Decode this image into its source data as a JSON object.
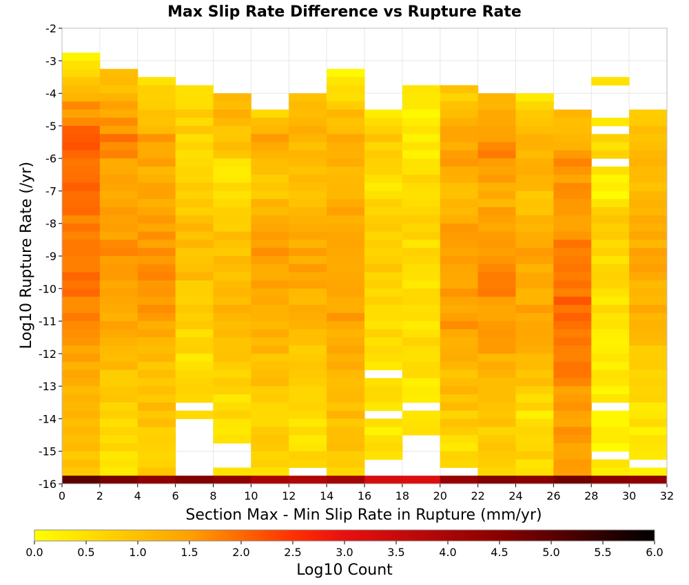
{
  "chart_data": {
    "type": "heatmap",
    "title": "Max Slip Rate Difference vs Rupture Rate",
    "xlabel": "Section Max - Min Slip Rate in Rupture (mm/yr)",
    "ylabel": "Log10 Rupture Rate (/yr)",
    "xlim": [
      0,
      32
    ],
    "ylim": [
      -16,
      -2
    ],
    "x_ticks": [
      "0",
      "2",
      "4",
      "6",
      "8",
      "10",
      "12",
      "14",
      "16",
      "18",
      "20",
      "22",
      "24",
      "26",
      "28",
      "30",
      "32"
    ],
    "y_ticks": [
      "-2",
      "-3",
      "-4",
      "-5",
      "-6",
      "-7",
      "-8",
      "-9",
      "-10",
      "-11",
      "-12",
      "-13",
      "-14",
      "-15",
      "-16"
    ],
    "x_bin_width": 2,
    "y_bin_height": 0.25,
    "grid": true,
    "colorbar": {
      "label": "Log10 Count",
      "range": [
        0,
        6
      ],
      "ticks": [
        "0.0",
        "0.5",
        "1.0",
        "1.5",
        "2.0",
        "2.5",
        "3.0",
        "3.5",
        "4.0",
        "4.5",
        "5.0",
        "5.5",
        "6.0"
      ],
      "stops": [
        {
          "value": 0.0,
          "color": "#ffff00"
        },
        {
          "value": 1.5,
          "color": "#ffa000"
        },
        {
          "value": 2.5,
          "color": "#ff3000"
        },
        {
          "value": 3.0,
          "color": "#e81010"
        },
        {
          "value": 4.5,
          "color": "#8a0000"
        },
        {
          "value": 6.0,
          "color": "#000000"
        }
      ]
    },
    "columns": [
      {
        "x0": 0,
        "top": -2.75,
        "bottom": -16,
        "profile": [
          [
            -2.75,
            0.3
          ],
          [
            -4,
            1.3
          ],
          [
            -5.5,
            2.1
          ],
          [
            -6.5,
            1.9
          ],
          [
            -8,
            1.8
          ],
          [
            -9,
            1.9
          ],
          [
            -11,
            1.7
          ],
          [
            -12.5,
            1.3
          ],
          [
            -14,
            1.1
          ],
          [
            -16,
            0.9
          ]
        ],
        "gaps": []
      },
      {
        "x0": 2,
        "top": -3.25,
        "bottom": -16,
        "profile": [
          [
            -3.25,
            0.8
          ],
          [
            -4,
            1.2
          ],
          [
            -5.5,
            1.8
          ],
          [
            -6.5,
            1.4
          ],
          [
            -9,
            1.6
          ],
          [
            -11,
            1.3
          ],
          [
            -12.5,
            1.0
          ],
          [
            -14,
            0.7
          ],
          [
            -16,
            0.5
          ]
        ],
        "gaps": []
      },
      {
        "x0": 4,
        "top": -3.5,
        "bottom": -16,
        "profile": [
          [
            -3.5,
            0.6
          ],
          [
            -4.5,
            0.9
          ],
          [
            -5.5,
            1.5
          ],
          [
            -6.5,
            1.2
          ],
          [
            -9,
            1.6
          ],
          [
            -11,
            1.5
          ],
          [
            -12,
            1.1
          ],
          [
            -14,
            0.9
          ],
          [
            -16,
            0.7
          ]
        ],
        "gaps": []
      },
      {
        "x0": 6,
        "top": -3.75,
        "bottom": -16,
        "profile": [
          [
            -3.75,
            0.4
          ],
          [
            -5,
            0.8
          ],
          [
            -6.5,
            0.5
          ],
          [
            -8,
            1.0
          ],
          [
            -9,
            1.1
          ],
          [
            -11,
            0.7
          ],
          [
            -12.5,
            0.4
          ],
          [
            -13.5,
            0.6
          ],
          [
            -16,
            0.5
          ]
        ],
        "gaps": [
          [
            -13.75,
            -13.5
          ],
          [
            -14.25,
            -14.0
          ],
          [
            -15.75,
            -14.25
          ]
        ]
      },
      {
        "x0": 8,
        "top": -4.0,
        "bottom": -16,
        "profile": [
          [
            -4,
            1.2
          ],
          [
            -5.5,
            1.0
          ],
          [
            -6.5,
            0.4
          ],
          [
            -8,
            0.8
          ],
          [
            -10,
            1.2
          ],
          [
            -12,
            0.9
          ],
          [
            -13.5,
            0.5
          ],
          [
            -15,
            0.6
          ],
          [
            -16,
            0.5
          ]
        ],
        "gaps": [
          [
            -15.5,
            -14.75
          ],
          [
            -16.0,
            -15.75
          ]
        ]
      },
      {
        "x0": 10,
        "top": -4.5,
        "bottom": -16,
        "profile": [
          [
            -4.5,
            0.5
          ],
          [
            -5.5,
            1.5
          ],
          [
            -7,
            0.8
          ],
          [
            -8,
            1.4
          ],
          [
            -10,
            1.5
          ],
          [
            -12,
            1.1
          ],
          [
            -14,
            0.7
          ],
          [
            -16,
            0.6
          ]
        ],
        "gaps": []
      },
      {
        "x0": 12,
        "top": -4.0,
        "bottom": -16,
        "profile": [
          [
            -4,
            0.9
          ],
          [
            -5,
            1.1
          ],
          [
            -7,
            1.0
          ],
          [
            -9,
            1.4
          ],
          [
            -11,
            1.2
          ],
          [
            -12.5,
            0.8
          ],
          [
            -14,
            0.4
          ],
          [
            -15,
            0.6
          ],
          [
            -16,
            0.6
          ]
        ],
        "gaps": [
          [
            -15.75,
            -15.5
          ]
        ]
      },
      {
        "x0": 14,
        "top": -3.25,
        "bottom": -16,
        "profile": [
          [
            -3.25,
            0.2
          ],
          [
            -4,
            0.6
          ],
          [
            -5,
            1.2
          ],
          [
            -7,
            1.3
          ],
          [
            -9,
            1.5
          ],
          [
            -11,
            1.4
          ],
          [
            -13,
            1.0
          ],
          [
            -14.5,
            1.0
          ],
          [
            -16,
            0.6
          ]
        ],
        "gaps": []
      },
      {
        "x0": 16,
        "top": -4.5,
        "bottom": -16,
        "profile": [
          [
            -4.5,
            0.3
          ],
          [
            -5.5,
            0.9
          ],
          [
            -7,
            0.3
          ],
          [
            -8,
            0.9
          ],
          [
            -10,
            0.7
          ],
          [
            -12,
            0.5
          ],
          [
            -13,
            0.5
          ],
          [
            -14,
            0.3
          ],
          [
            -15,
            0.5
          ],
          [
            -16,
            0.6
          ]
        ],
        "gaps": [
          [
            -12.75,
            -12.5
          ],
          [
            -14.0,
            -13.75
          ],
          [
            -16.0,
            -15.25
          ]
        ]
      },
      {
        "x0": 18,
        "top": -3.75,
        "bottom": -16,
        "profile": [
          [
            -3.75,
            0.4
          ],
          [
            -5.5,
            0.2
          ],
          [
            -6.5,
            0.7
          ],
          [
            -8,
            0.6
          ],
          [
            -10,
            0.5
          ],
          [
            -12,
            0.5
          ],
          [
            -13,
            0.4
          ],
          [
            -14,
            0.4
          ],
          [
            -14.5,
            0.4
          ]
        ],
        "gaps": [
          [
            -13.75,
            -13.5
          ],
          [
            -16.0,
            -14.5
          ]
        ]
      },
      {
        "x0": 20,
        "top": -3.75,
        "bottom": -16,
        "profile": [
          [
            -3.75,
            0.7
          ],
          [
            -4.5,
            1.1
          ],
          [
            -6,
            1.5
          ],
          [
            -7,
            1.1
          ],
          [
            -9,
            1.6
          ],
          [
            -11,
            1.5
          ],
          [
            -12.5,
            1.1
          ],
          [
            -14,
            0.8
          ],
          [
            -15,
            0.5
          ],
          [
            -16,
            0.5
          ]
        ],
        "gaps": [
          [
            -16.0,
            -15.5
          ]
        ]
      },
      {
        "x0": 22,
        "top": -4.0,
        "bottom": -16,
        "profile": [
          [
            -4,
            1.0
          ],
          [
            -5,
            1.3
          ],
          [
            -6,
            1.7
          ],
          [
            -7,
            1.2
          ],
          [
            -9,
            1.7
          ],
          [
            -11,
            1.6
          ],
          [
            -12.5,
            1.2
          ],
          [
            -14,
            0.9
          ],
          [
            -15,
            0.7
          ],
          [
            -16,
            0.6
          ]
        ],
        "gaps": []
      },
      {
        "x0": 24,
        "top": -4.0,
        "bottom": -16,
        "profile": [
          [
            -4,
            0.4
          ],
          [
            -5,
            0.9
          ],
          [
            -6,
            1.3
          ],
          [
            -7,
            1.0
          ],
          [
            -9,
            1.4
          ],
          [
            -11,
            1.3
          ],
          [
            -12.5,
            1.1
          ],
          [
            -14,
            0.4
          ],
          [
            -15,
            0.6
          ],
          [
            -16,
            0.6
          ]
        ],
        "gaps": []
      },
      {
        "x0": 26,
        "top": -4.5,
        "bottom": -16,
        "profile": [
          [
            -4.5,
            0.9
          ],
          [
            -6,
            1.6
          ],
          [
            -7.5,
            1.5
          ],
          [
            -9,
            1.8
          ],
          [
            -10,
            2.0
          ],
          [
            -12,
            1.8
          ],
          [
            -14,
            1.5
          ],
          [
            -16,
            1.3
          ]
        ],
        "gaps": []
      },
      {
        "x0": 28,
        "top": -3.5,
        "bottom": -16,
        "profile": [
          [
            -3.5,
            0.3
          ],
          [
            -4.75,
            0.4
          ],
          [
            -5.5,
            0.6
          ],
          [
            -7,
            0.2
          ],
          [
            -8,
            0.8
          ],
          [
            -10,
            0.5
          ],
          [
            -12,
            0.4
          ],
          [
            -13,
            0.3
          ],
          [
            -14,
            0.2
          ],
          [
            -15,
            0.2
          ],
          [
            -16,
            0.3
          ]
        ],
        "gaps": [
          [
            -4.75,
            -3.75
          ],
          [
            -5.25,
            -5.0
          ],
          [
            -6.25,
            -6.0
          ],
          [
            -13.75,
            -13.5
          ],
          [
            -15.25,
            -15.0
          ],
          [
            -16.0,
            -15.75
          ]
        ]
      },
      {
        "x0": 30,
        "top": -4.5,
        "bottom": -16,
        "profile": [
          [
            -4.5,
            0.8
          ],
          [
            -5.5,
            1.1
          ],
          [
            -7,
            1.0
          ],
          [
            -9,
            1.3
          ],
          [
            -11,
            1.2
          ],
          [
            -12.5,
            0.8
          ],
          [
            -14,
            0.4
          ],
          [
            -15,
            0.3
          ],
          [
            -16,
            0.3
          ]
        ],
        "gaps": [
          [
            -15.5,
            -15.25
          ]
        ]
      }
    ],
    "bottom_row": {
      "y0": -16.0,
      "y1": -15.75,
      "values": [
        5.0,
        4.7,
        4.4,
        4.6,
        4.4,
        4.0,
        3.9,
        4.1,
        3.3,
        3.2,
        4.3,
        4.6,
        4.5,
        4.8,
        4.5,
        4.4
      ]
    }
  }
}
